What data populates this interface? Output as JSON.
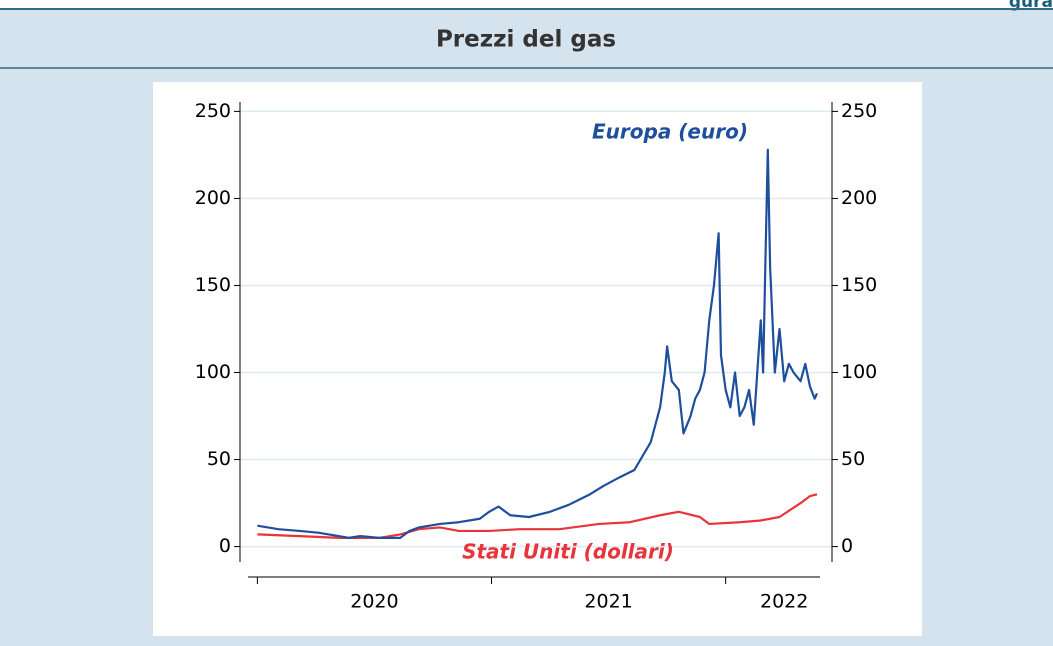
{
  "header": {
    "label": "gura"
  },
  "chart_data": {
    "type": "line",
    "title": "Prezzi del gas",
    "annotations": [
      "Europa (euro)",
      "Stati Uniti (dollari)"
    ],
    "series": [
      {
        "name": "Europa (euro)",
        "color": "#1f4e9c",
        "x": [
          2020.0,
          2020.09,
          2020.18,
          2020.26,
          2020.35,
          2020.39,
          2020.44,
          2020.52,
          2020.61,
          2020.65,
          2020.69,
          2020.78,
          2020.86,
          2020.95,
          2020.99,
          2021.03,
          2021.08,
          2021.16,
          2021.25,
          2021.33,
          2021.42,
          2021.48,
          2021.55,
          2021.61,
          2021.68,
          2021.72,
          2021.74,
          2021.75,
          2021.77,
          2021.8,
          2021.82,
          2021.85,
          2021.87,
          2021.89,
          2021.91,
          2021.93,
          2021.95,
          2021.97,
          2021.98,
          2022.0,
          2022.02,
          2022.04,
          2022.06,
          2022.08,
          2022.1,
          2022.12,
          2022.15,
          2022.16,
          2022.17,
          2022.18,
          2022.19,
          2022.21,
          2022.23,
          2022.25,
          2022.27,
          2022.29,
          2022.32,
          2022.34,
          2022.36,
          2022.38,
          2022.39
        ],
        "values": [
          12,
          10,
          9,
          8,
          6,
          5,
          6,
          5,
          5,
          9,
          11,
          13,
          14,
          16,
          20,
          23,
          18,
          17,
          20,
          24,
          30,
          35,
          40,
          44,
          60,
          80,
          100,
          115,
          95,
          90,
          65,
          75,
          85,
          90,
          100,
          130,
          150,
          180,
          110,
          90,
          80,
          100,
          75,
          80,
          90,
          70,
          130,
          100,
          165,
          228,
          160,
          100,
          125,
          95,
          105,
          100,
          95,
          105,
          92,
          85,
          88
        ]
      },
      {
        "name": "Stati Uniti (dollari)",
        "color": "#e8343a",
        "x": [
          2020.0,
          2020.18,
          2020.35,
          2020.52,
          2020.61,
          2020.69,
          2020.78,
          2020.86,
          2020.99,
          2021.12,
          2021.29,
          2021.46,
          2021.59,
          2021.72,
          2021.8,
          2021.89,
          2021.93,
          2022.06,
          2022.15,
          2022.23,
          2022.32,
          2022.36,
          2022.39
        ],
        "values": [
          7,
          6,
          5,
          5,
          7,
          10,
          11,
          9,
          9,
          10,
          10,
          13,
          14,
          18,
          20,
          17,
          13,
          14,
          15,
          17,
          25,
          29,
          30
        ]
      }
    ],
    "xlim": [
      2019.96,
      2022.42
    ],
    "xticks": [
      2020,
      2021,
      2022
    ],
    "xtick_labels": [
      {
        "value": 2020.5,
        "label": "2020"
      },
      {
        "value": 2021.5,
        "label": "2021"
      },
      {
        "value": 2022.25,
        "label": "2022"
      }
    ],
    "ylim": [
      -10,
      260
    ],
    "yticks": [
      0,
      50,
      100,
      150,
      200,
      250
    ],
    "y2lim": [
      -10,
      260
    ],
    "y2ticks": [
      0,
      50,
      100,
      150,
      200,
      250
    ],
    "grid": true
  }
}
